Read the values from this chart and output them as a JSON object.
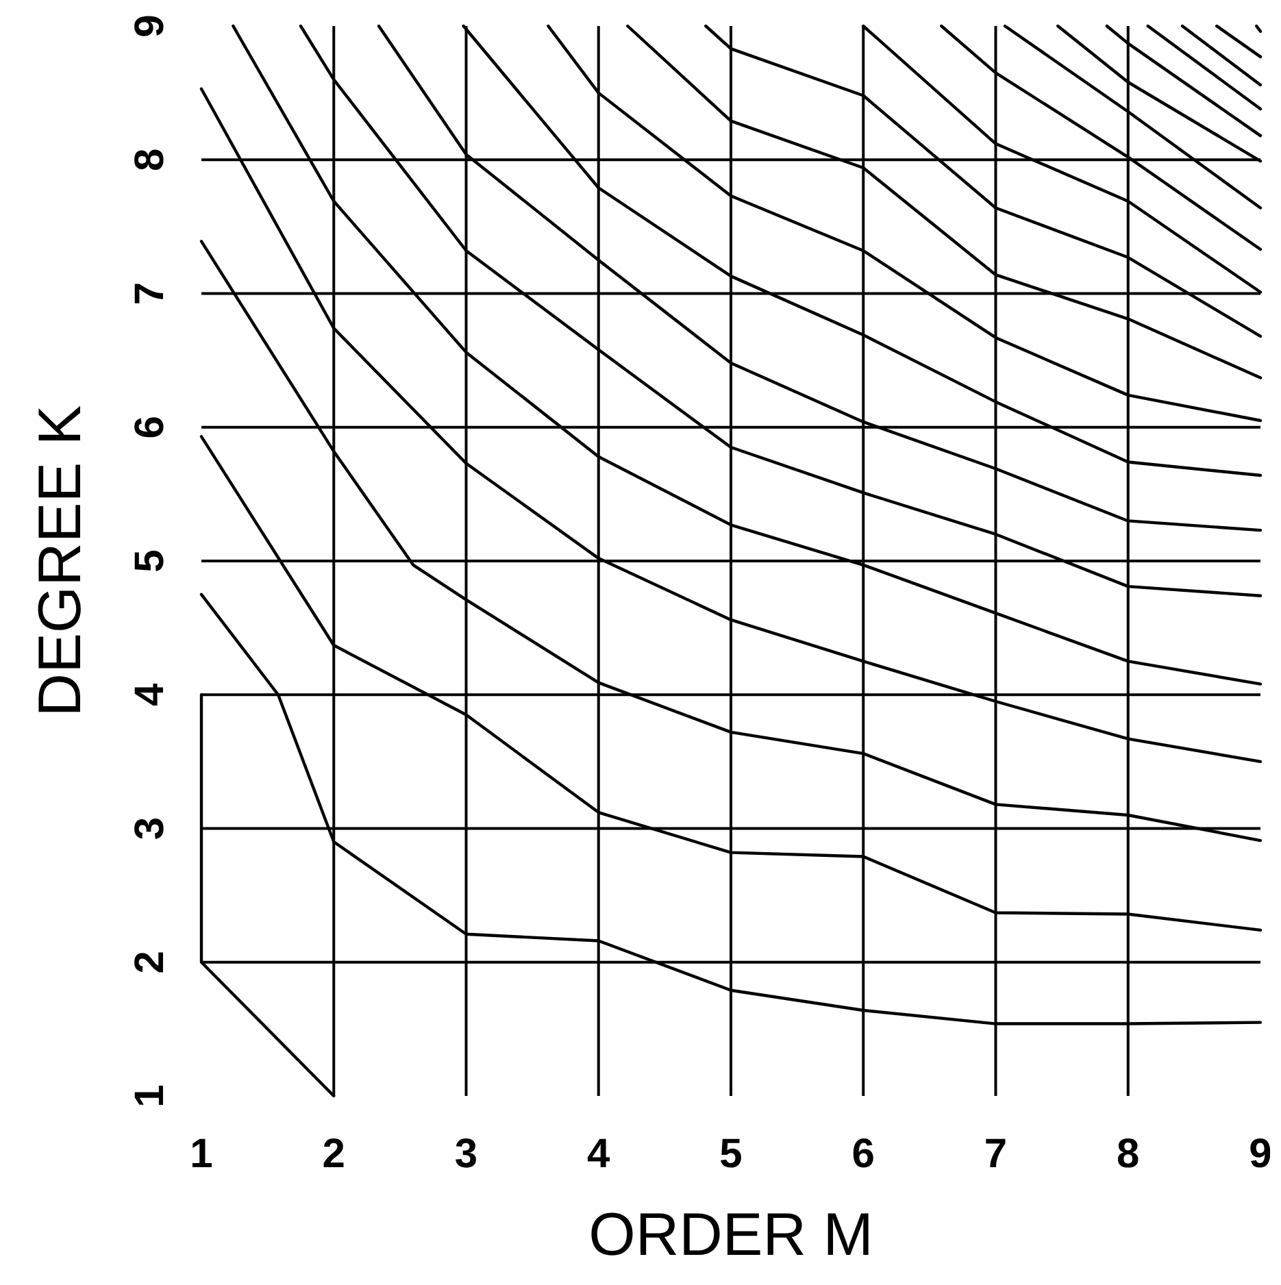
{
  "chart_data": {
    "type": "line",
    "xlabel": "ORDER M",
    "ylabel": "DEGREE K",
    "xlim": [
      1,
      9
    ],
    "ylim": [
      1,
      9
    ],
    "xticks": [
      1,
      2,
      3,
      4,
      5,
      6,
      7,
      8,
      9
    ],
    "yticks": [
      1,
      2,
      3,
      4,
      5,
      6,
      7,
      8,
      9
    ],
    "grid": true,
    "series": [
      {
        "color": "#000000",
        "x": [
          1,
          1,
          2
        ],
        "values": [
          4,
          2,
          1
        ]
      },
      {
        "color": "#000000",
        "x": [
          1,
          1.58,
          2,
          3,
          4,
          5,
          6,
          7,
          8,
          9
        ],
        "values": [
          4.75,
          4.0,
          2.9,
          2.21,
          2.16,
          1.79,
          1.64,
          1.54,
          1.54,
          1.55
        ]
      },
      {
        "color": "#000000",
        "x": [
          1,
          2,
          3,
          4,
          5,
          6,
          7,
          8,
          9
        ],
        "values": [
          5.93,
          4.37,
          3.85,
          3.12,
          2.82,
          2.79,
          2.37,
          2.36,
          2.24
        ]
      },
      {
        "color": "#000000",
        "x": [
          1,
          2,
          2.6,
          3,
          4,
          5,
          6,
          7,
          8,
          9
        ],
        "values": [
          7.39,
          5.82,
          4.97,
          4.71,
          4.09,
          3.72,
          3.56,
          3.18,
          3.1,
          2.91
        ]
      },
      {
        "color": "#000000",
        "x": [
          1,
          2,
          3,
          4,
          5,
          6,
          7,
          8,
          9
        ],
        "values": [
          8.53,
          6.74,
          5.73,
          5.02,
          4.56,
          4.25,
          3.95,
          3.67,
          3.5
        ]
      },
      {
        "color": "#000000",
        "x": [
          1.24,
          2,
          3,
          4,
          5,
          6,
          7,
          8,
          9
        ],
        "values": [
          9,
          7.69,
          6.56,
          5.78,
          5.27,
          4.97,
          4.61,
          4.25,
          4.08
        ]
      },
      {
        "color": "#000000",
        "x": [
          1.75,
          2,
          3,
          4,
          5,
          6,
          7,
          8,
          9
        ],
        "values": [
          9,
          8.6,
          7.32,
          6.58,
          5.85,
          5.51,
          5.2,
          4.81,
          4.74
        ]
      },
      {
        "color": "#000000",
        "x": [
          2.34,
          3,
          4,
          5,
          6,
          7,
          8,
          9
        ],
        "values": [
          9,
          8.04,
          7.25,
          6.48,
          6.04,
          5.69,
          5.3,
          5.23
        ]
      },
      {
        "color": "#000000",
        "x": [
          2.98,
          4,
          5,
          6,
          7,
          8,
          9
        ],
        "values": [
          9,
          7.79,
          7.13,
          6.69,
          6.19,
          5.74,
          5.64
        ]
      },
      {
        "color": "#000000",
        "x": [
          3.62,
          4,
          5,
          6,
          7,
          8,
          9
        ],
        "values": [
          9,
          8.5,
          7.73,
          7.32,
          6.67,
          6.24,
          6.05
        ]
      },
      {
        "color": "#000000",
        "x": [
          4.22,
          5,
          6,
          7,
          8,
          9
        ],
        "values": [
          9,
          8.29,
          7.94,
          7.14,
          6.81,
          6.37
        ]
      },
      {
        "color": "#000000",
        "x": [
          4.81,
          5,
          6,
          7,
          8,
          9
        ],
        "values": [
          9,
          8.83,
          8.48,
          7.64,
          7.27,
          6.68
        ]
      },
      {
        "color": "#000000",
        "x": [
          6,
          7,
          8,
          9
        ],
        "values": [
          9,
          8.12,
          7.69,
          7.01
        ]
      },
      {
        "color": "#000000",
        "x": [
          6.59,
          7,
          8,
          9
        ],
        "values": [
          9,
          8.65,
          8.02,
          7.33
        ]
      },
      {
        "color": "#000000",
        "x": [
          7.07,
          8,
          9
        ],
        "values": [
          9,
          8.36,
          7.64
        ]
      },
      {
        "color": "#000000",
        "x": [
          7.47,
          8,
          9
        ],
        "values": [
          9,
          8.58,
          7.99
        ]
      },
      {
        "color": "#000000",
        "x": [
          7.84,
          8,
          9
        ],
        "values": [
          9,
          8.87,
          8.18
        ]
      },
      {
        "color": "#000000",
        "x": [
          8.15,
          9
        ],
        "values": [
          9,
          8.38
        ]
      },
      {
        "color": "#000000",
        "x": [
          8.41,
          9
        ],
        "values": [
          9,
          8.56
        ]
      },
      {
        "color": "#000000",
        "x": [
          8.67,
          9
        ],
        "values": [
          9,
          8.77
        ]
      },
      {
        "color": "#000000",
        "x": [
          8.97,
          9
        ],
        "values": [
          9,
          8.96
        ]
      }
    ]
  }
}
